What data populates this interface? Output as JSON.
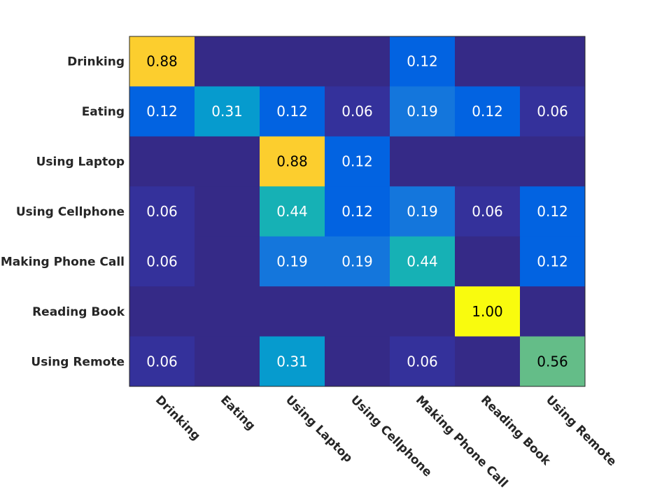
{
  "chart_data": {
    "type": "heatmap",
    "title": "",
    "xlabel": "",
    "ylabel": "",
    "rows": [
      "Drinking",
      "Eating",
      "Using Laptop",
      "Using Cellphone",
      "Making Phone Call",
      "Reading Book",
      "Using Remote"
    ],
    "columns": [
      "Drinking",
      "Eating",
      "Using Laptop",
      "Using Cellphone",
      "Making Phone Call",
      "Reading Book",
      "Using Remote"
    ],
    "values": [
      [
        0.88,
        0,
        0,
        0,
        0.12,
        0,
        0
      ],
      [
        0.12,
        0.31,
        0.12,
        0.06,
        0.19,
        0.12,
        0.06
      ],
      [
        0,
        0,
        0.88,
        0.12,
        0,
        0,
        0
      ],
      [
        0.06,
        0,
        0.44,
        0.12,
        0.19,
        0.06,
        0.12
      ],
      [
        0.06,
        0,
        0.19,
        0.19,
        0.44,
        0,
        0.12
      ],
      [
        0,
        0,
        0,
        0,
        0,
        1.0,
        0
      ],
      [
        0.06,
        0,
        0.31,
        0,
        0.06,
        0,
        0.56
      ]
    ],
    "value_range": [
      0,
      1
    ],
    "colormap": "parula",
    "show_zero_labels": false,
    "label_colors": {
      "dark_cells": "#ffffff",
      "light_cells": "#000000"
    }
  }
}
